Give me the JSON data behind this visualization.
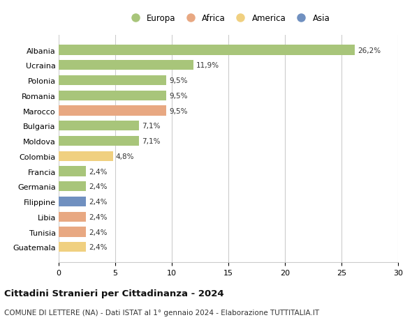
{
  "labels": [
    "Albania",
    "Ucraina",
    "Polonia",
    "Romania",
    "Marocco",
    "Bulgaria",
    "Moldova",
    "Colombia",
    "Francia",
    "Germania",
    "Filippine",
    "Libia",
    "Tunisia",
    "Guatemala"
  ],
  "values": [
    26.2,
    11.9,
    9.5,
    9.5,
    9.5,
    7.1,
    7.1,
    4.8,
    2.4,
    2.4,
    2.4,
    2.4,
    2.4,
    2.4
  ],
  "value_labels": [
    "26,2%",
    "11,9%",
    "9,5%",
    "9,5%",
    "9,5%",
    "7,1%",
    "7,1%",
    "4,8%",
    "2,4%",
    "2,4%",
    "2,4%",
    "2,4%",
    "2,4%",
    "2,4%"
  ],
  "colors": [
    "#a8c57a",
    "#a8c57a",
    "#a8c57a",
    "#a8c57a",
    "#e8a882",
    "#a8c57a",
    "#a8c57a",
    "#f0d080",
    "#a8c57a",
    "#a8c57a",
    "#7090c0",
    "#e8a882",
    "#e8a882",
    "#f0d080"
  ],
  "legend_labels": [
    "Europa",
    "Africa",
    "America",
    "Asia"
  ],
  "legend_colors": [
    "#a8c57a",
    "#e8a882",
    "#f0d080",
    "#7090c0"
  ],
  "xlim": [
    0,
    30
  ],
  "xticks": [
    0,
    5,
    10,
    15,
    20,
    25,
    30
  ],
  "title": "Cittadini Stranieri per Cittadinanza - 2024",
  "subtitle": "COMUNE DI LETTERE (NA) - Dati ISTAT al 1° gennaio 2024 - Elaborazione TUTTITALIA.IT",
  "bg_color": "#ffffff",
  "grid_color": "#cccccc",
  "bar_height": 0.65
}
